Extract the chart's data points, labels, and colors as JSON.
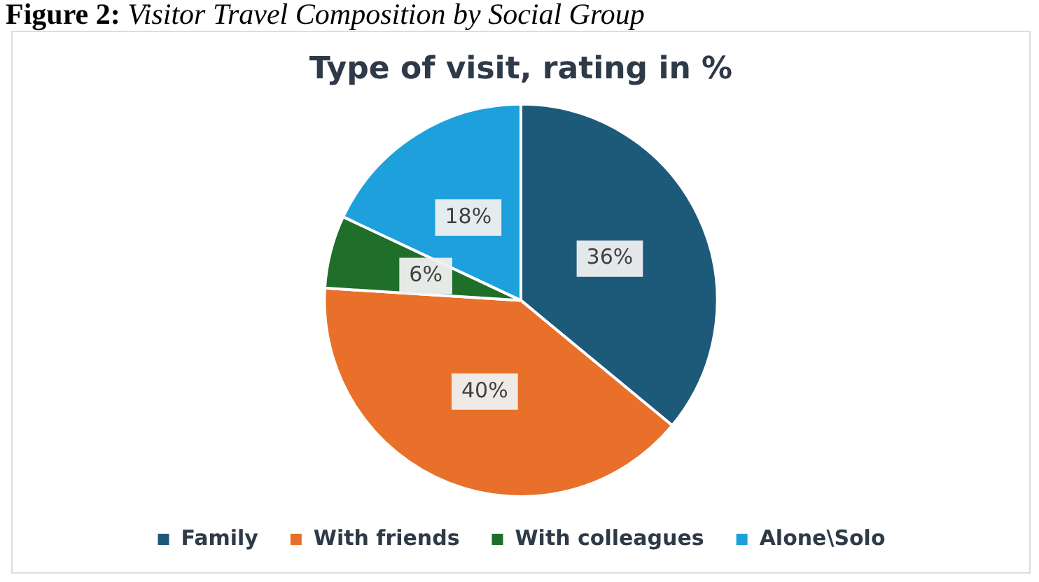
{
  "chart_data": {
    "type": "pie",
    "title": "Type of visit, rating in %",
    "annotations": [
      "Figure 2: Visitor Travel Composition by Social Group"
    ],
    "categories": [
      "Family",
      "With friends",
      "With colleagues",
      "Alone\\Solo"
    ],
    "values": [
      36,
      40,
      6,
      18
    ],
    "colors": [
      "#1d5a7a",
      "#e8702a",
      "#1f6e2a",
      "#1ea0dc"
    ],
    "value_labels": [
      "36%",
      "40%",
      "6%",
      "18%"
    ],
    "legend": "bottom"
  }
}
